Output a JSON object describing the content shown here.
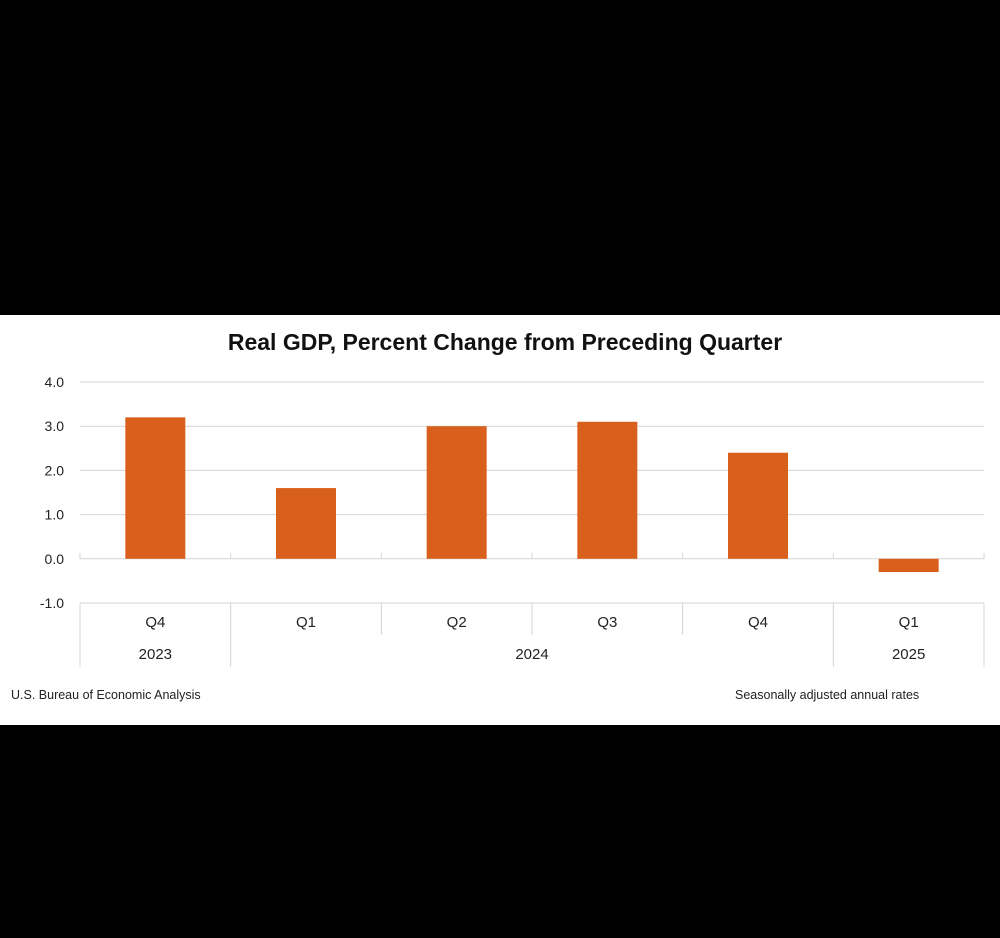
{
  "colors": {
    "bar": "#d9601c",
    "grid": "#d4d4d4",
    "background": "#ffffff",
    "frame": "#000000"
  },
  "chart_data": {
    "type": "bar",
    "title": "Real GDP, Percent Change from Preceding Quarter",
    "categories": [
      "Q4",
      "Q1",
      "Q2",
      "Q3",
      "Q4",
      "Q1"
    ],
    "groups": [
      {
        "label": "2023",
        "span": 1
      },
      {
        "label": "2024",
        "span": 4
      },
      {
        "label": "2025",
        "span": 1
      }
    ],
    "values": [
      3.2,
      1.6,
      3.0,
      3.1,
      2.4,
      -0.3
    ],
    "ylim": [
      -1.0,
      4.0
    ],
    "yticks": [
      "4.0",
      "3.0",
      "2.0",
      "1.0",
      "0.0",
      "-1.0"
    ],
    "grid": true,
    "legend": "none"
  },
  "footer": {
    "source": "U.S. Bureau of Economic Analysis",
    "note": "Seasonally adjusted annual rates"
  }
}
